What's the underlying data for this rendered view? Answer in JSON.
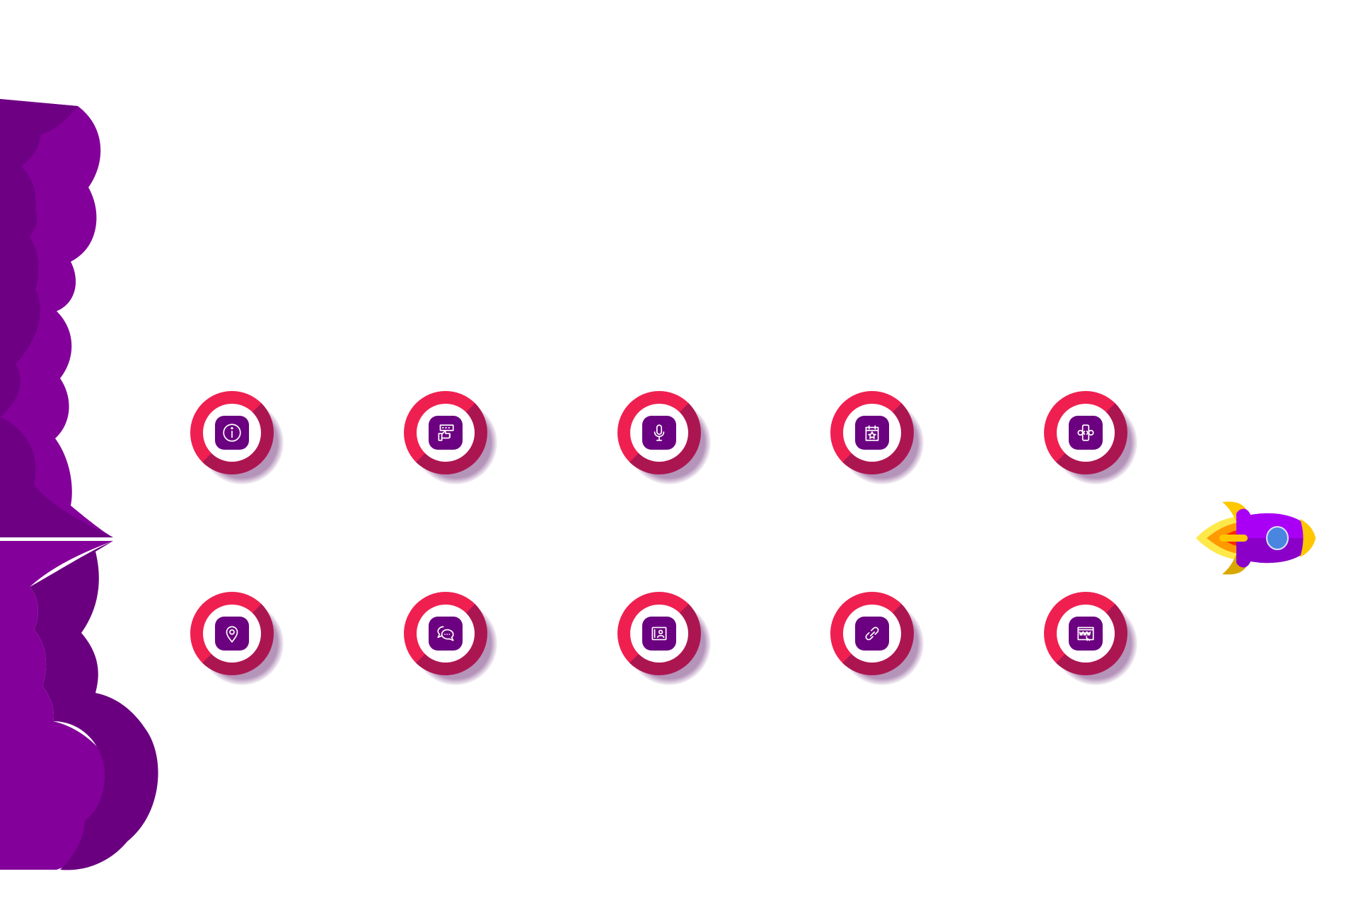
{
  "colors": {
    "ring": "#ef2050",
    "ring_shade": "#ac1650",
    "tile": "#6b0080",
    "cloud_light": "#84009a",
    "cloud_dark": "#6a0080",
    "rocket_body": "#a900f5",
    "rocket_fin": "#ffc700",
    "rocket_window": "#4a86e0"
  },
  "icons": [
    {
      "name": "info-icon"
    },
    {
      "name": "rating-thumbs-up-icon"
    },
    {
      "name": "microphone-icon"
    },
    {
      "name": "calendar-star-icon"
    },
    {
      "name": "mobile-code-icon"
    },
    {
      "name": "location-pin-icon"
    },
    {
      "name": "chat-bubbles-icon"
    },
    {
      "name": "contact-card-icon"
    },
    {
      "name": "link-icon"
    },
    {
      "name": "website-www-icon"
    }
  ]
}
